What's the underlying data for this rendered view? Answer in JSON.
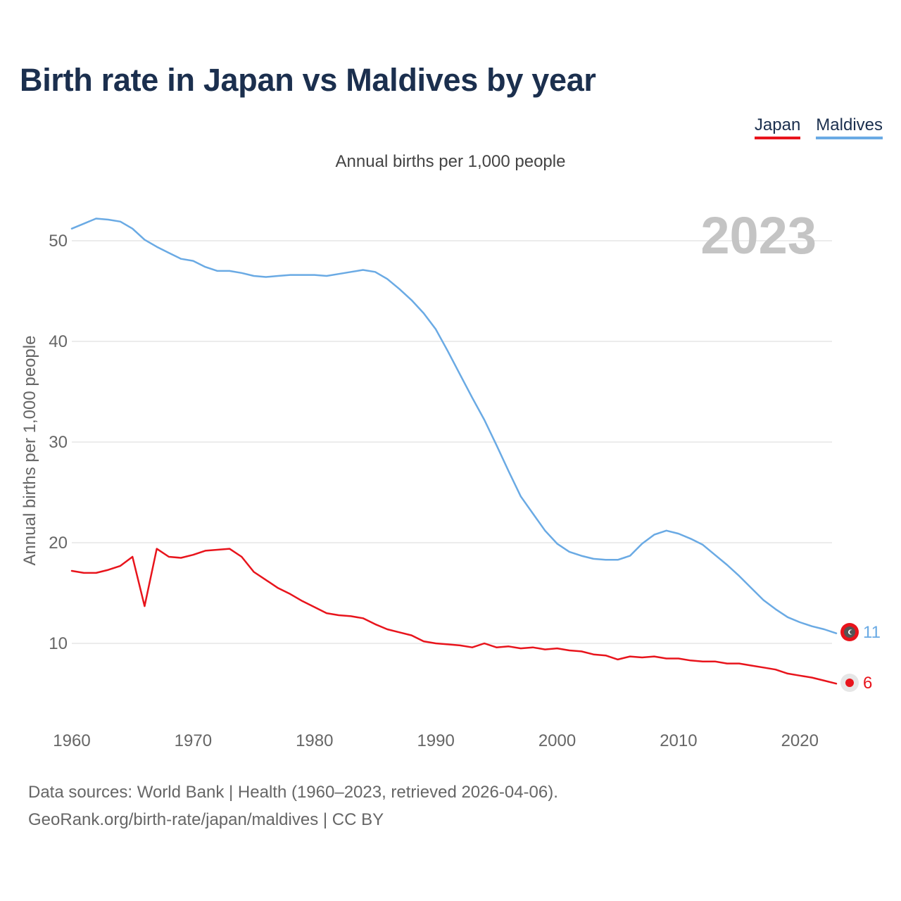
{
  "title": "Birth rate in Japan vs Maldives by year",
  "subtitle": "Annual births per 1,000 people",
  "legend": {
    "japan": "Japan",
    "maldives": "Maldives"
  },
  "year_display": "2023",
  "end_labels": {
    "japan": "6",
    "maldives": "11"
  },
  "source": {
    "line1": "Data sources: World Bank | Health (1960–2023, retrieved 2026-04-06).",
    "line2": "GeoRank.org/birth-rate/japan/maldives | CC BY"
  },
  "colors": {
    "japan": "#e8141c",
    "maldives": "#6aaae4",
    "grid": "#e6e6e6",
    "axis_text": "#666666"
  },
  "chart_data": {
    "type": "line",
    "title": "Birth rate in Japan vs Maldives by year",
    "ylabel": "Annual births per 1,000 people",
    "xlabel": "",
    "x_ticks": [
      1960,
      1970,
      1980,
      1990,
      2000,
      2010,
      2020
    ],
    "y_ticks": [
      10,
      20,
      30,
      40,
      50
    ],
    "xlim": [
      1960,
      2023
    ],
    "ylim": [
      3,
      54
    ],
    "x": [
      1960,
      1961,
      1962,
      1963,
      1964,
      1965,
      1966,
      1967,
      1968,
      1969,
      1970,
      1971,
      1972,
      1973,
      1974,
      1975,
      1976,
      1977,
      1978,
      1979,
      1980,
      1981,
      1982,
      1983,
      1984,
      1985,
      1986,
      1987,
      1988,
      1989,
      1990,
      1991,
      1992,
      1993,
      1994,
      1995,
      1996,
      1997,
      1998,
      1999,
      2000,
      2001,
      2002,
      2003,
      2004,
      2005,
      2006,
      2007,
      2008,
      2009,
      2010,
      2011,
      2012,
      2013,
      2014,
      2015,
      2016,
      2017,
      2018,
      2019,
      2020,
      2021,
      2022,
      2023
    ],
    "series": [
      {
        "name": "Japan",
        "values": [
          17.2,
          17.0,
          17.0,
          17.3,
          17.7,
          18.6,
          13.7,
          19.4,
          18.6,
          18.5,
          18.8,
          19.2,
          19.3,
          19.4,
          18.6,
          17.1,
          16.3,
          15.5,
          14.9,
          14.2,
          13.6,
          13.0,
          12.8,
          12.7,
          12.5,
          11.9,
          11.4,
          11.1,
          10.8,
          10.2,
          10.0,
          9.9,
          9.8,
          9.6,
          10.0,
          9.6,
          9.7,
          9.5,
          9.6,
          9.4,
          9.5,
          9.3,
          9.2,
          8.9,
          8.8,
          8.4,
          8.7,
          8.6,
          8.7,
          8.5,
          8.5,
          8.3,
          8.2,
          8.2,
          8.0,
          8.0,
          7.8,
          7.6,
          7.4,
          7.0,
          6.8,
          6.6,
          6.3,
          6.0
        ]
      },
      {
        "name": "Maldives",
        "values": [
          51.2,
          51.7,
          52.2,
          52.1,
          51.9,
          51.2,
          50.1,
          49.4,
          48.8,
          48.2,
          48.0,
          47.4,
          47.0,
          47.0,
          46.8,
          46.5,
          46.4,
          46.5,
          46.6,
          46.6,
          46.6,
          46.5,
          46.7,
          46.9,
          47.1,
          46.9,
          46.2,
          45.2,
          44.1,
          42.8,
          41.2,
          39.0,
          36.7,
          34.4,
          32.2,
          29.7,
          27.1,
          24.6,
          22.9,
          21.2,
          19.9,
          19.1,
          18.7,
          18.4,
          18.3,
          18.3,
          18.7,
          19.9,
          20.8,
          21.2,
          20.9,
          20.4,
          19.8,
          18.8,
          17.8,
          16.7,
          15.5,
          14.3,
          13.4,
          12.6,
          12.1,
          11.7,
          11.4,
          11.0
        ]
      }
    ]
  }
}
